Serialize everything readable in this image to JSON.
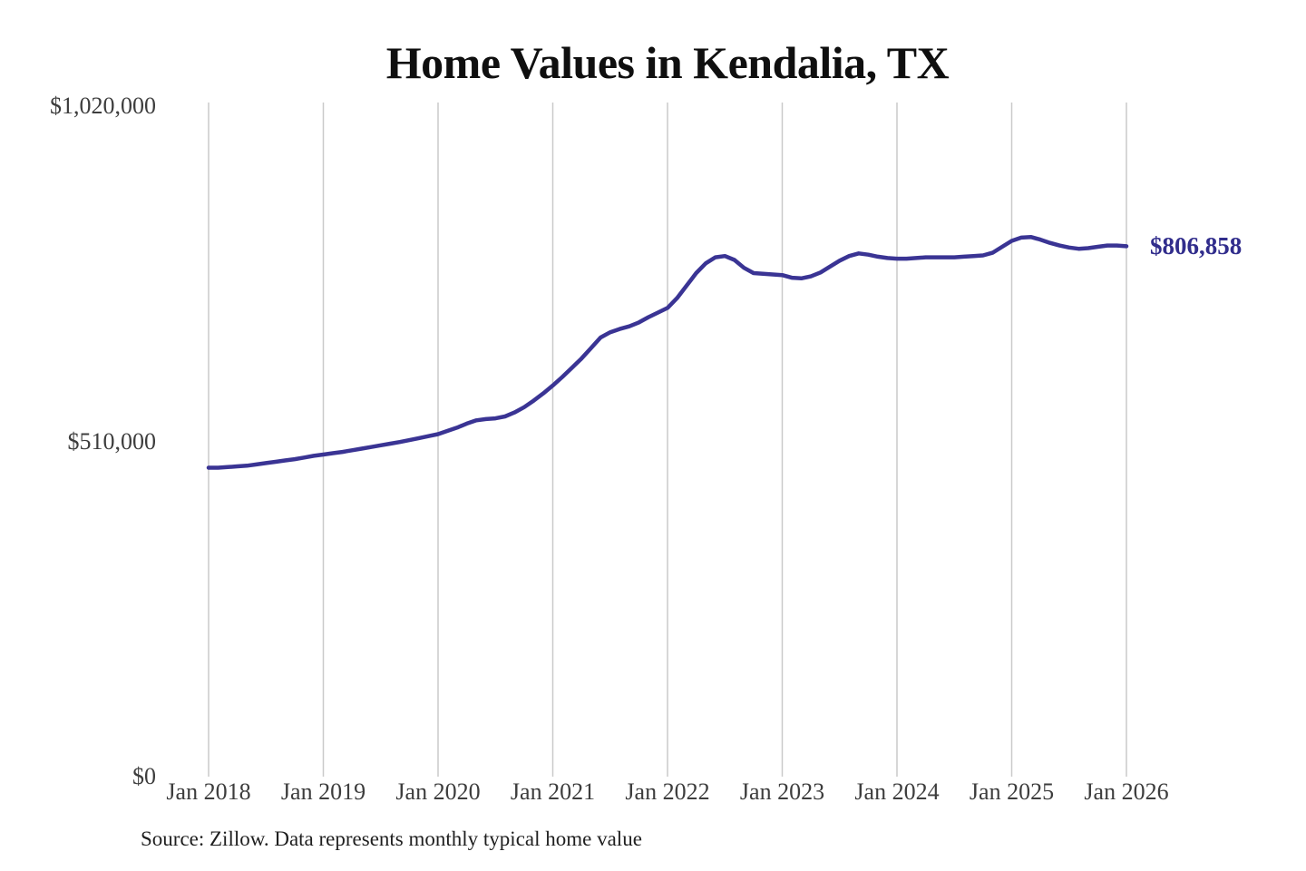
{
  "title": "Home Values in Kendalia, TX",
  "source_note": "Source: Zillow. Data represents monthly typical home value",
  "end_label": "$806,858",
  "colors": {
    "line": "#3a3494",
    "end_label": "#312d8c",
    "gridline": "#cacaca",
    "axis_text": "#3d3d3d",
    "title_text": "#0f0f0f",
    "source_text": "#1f1f1f",
    "background": "#ffffff"
  },
  "chart_data": {
    "type": "line",
    "title": "Home Values in Kendalia, TX",
    "xlabel": "",
    "ylabel": "",
    "x_unit": "month",
    "x_start": "2018-01",
    "x_end": "2026-01",
    "x_tick_labels": [
      "Jan 2018",
      "Jan 2019",
      "Jan 2020",
      "Jan 2021",
      "Jan 2022",
      "Jan 2023",
      "Jan 2024",
      "Jan 2025",
      "Jan 2026"
    ],
    "y_tick_labels": [
      "$0",
      "$510,000",
      "$1,020,000"
    ],
    "y_ticks": [
      0,
      510000,
      1020000
    ],
    "ylim": [
      0,
      1020000
    ],
    "grid": "vertical-only",
    "legend": "none",
    "last_value": 806858,
    "last_value_label": "$806,858",
    "series": [
      {
        "name": "Monthly typical home value",
        "color": "#3a3494",
        "values": [
          470000,
          470000,
          471000,
          472000,
          473000,
          475000,
          477000,
          479000,
          481000,
          483000,
          485500,
          488000,
          490000,
          492000,
          494000,
          496500,
          499000,
          501500,
          504000,
          506500,
          509000,
          512000,
          515000,
          518000,
          521000,
          526000,
          531000,
          537000,
          542000,
          544000,
          545000,
          548000,
          554000,
          562000,
          572000,
          583000,
          595000,
          608000,
          622000,
          636000,
          652000,
          668000,
          676000,
          681000,
          685000,
          691000,
          699000,
          706000,
          713000,
          728000,
          747000,
          766000,
          781000,
          790000,
          792000,
          786000,
          774000,
          766000,
          765000,
          764000,
          763000,
          759000,
          758000,
          761000,
          767000,
          776000,
          785000,
          792000,
          796000,
          794000,
          791000,
          789000,
          788000,
          788000,
          789000,
          790000,
          790000,
          790000,
          790000,
          791000,
          792000,
          793000,
          797000,
          806000,
          815000,
          820000,
          821000,
          817000,
          812000,
          808000,
          805000,
          803000,
          804000,
          806000,
          808000,
          808000,
          806858
        ]
      }
    ]
  }
}
